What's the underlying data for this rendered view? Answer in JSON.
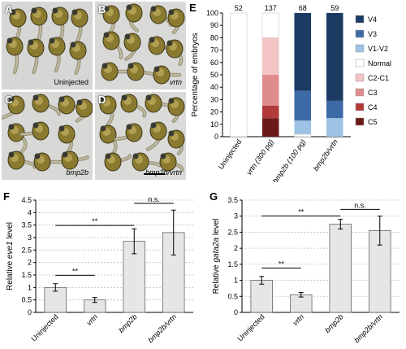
{
  "panels": {
    "A": {
      "label": "A",
      "caption": "Uninjected"
    },
    "B": {
      "label": "B",
      "caption": "vrtn"
    },
    "C": {
      "label": "C",
      "caption": "bmp2b"
    },
    "D": {
      "label": "D",
      "caption": "bmp2b/vrtn"
    },
    "E": {
      "label": "E"
    },
    "F": {
      "label": "F"
    },
    "G": {
      "label": "G"
    }
  },
  "chart_data": [
    {
      "id": "E",
      "type": "bar",
      "stacked": true,
      "ylabel": "Percentage of embryos",
      "ylim": [
        0,
        100
      ],
      "yticks": [
        0,
        10,
        20,
        30,
        40,
        50,
        60,
        70,
        80,
        90,
        100
      ],
      "categories": [
        "Uninjected",
        "vrtn (300 pg)",
        "bmp2b (100 pg)",
        "bmp2b/vrtn"
      ],
      "n": [
        "52",
        "137",
        "68",
        "59"
      ],
      "legend_position": "right",
      "series": [
        {
          "name": "C5",
          "color": "#6b1a1a",
          "values": [
            0,
            15,
            0,
            0
          ]
        },
        {
          "name": "C4",
          "color": "#b23a3a",
          "values": [
            0,
            10,
            0,
            0
          ]
        },
        {
          "name": "C3",
          "color": "#de8c8c",
          "values": [
            0,
            25,
            0,
            0
          ]
        },
        {
          "name": "C2-C1",
          "color": "#f2c4c4",
          "values": [
            0,
            30,
            0,
            0
          ]
        },
        {
          "name": "Normal",
          "color": "#ffffff",
          "values": [
            100,
            20,
            2,
            0
          ]
        },
        {
          "name": "V1-V2",
          "color": "#9cc3e3",
          "values": [
            0,
            0,
            11,
            15
          ]
        },
        {
          "name": "V3",
          "color": "#3c6aa6",
          "values": [
            0,
            0,
            24,
            14
          ]
        },
        {
          "name": "V4",
          "color": "#1c3b63",
          "values": [
            0,
            0,
            63,
            71
          ]
        }
      ],
      "legend": [
        "V4",
        "V3",
        "V1-V2",
        "Normal",
        "C2-C1",
        "C3",
        "C4",
        "C5"
      ]
    },
    {
      "id": "F",
      "type": "bar",
      "ylabel_prefix": "Relative ",
      "ylabel_gene": "eve1",
      "ylabel_suffix": " level",
      "ylim": [
        0,
        4.5
      ],
      "yticks": [
        0,
        0.5,
        1,
        1.5,
        2,
        2.5,
        3,
        3.5,
        4,
        4.5
      ],
      "grid": true,
      "categories": [
        "Uninjected",
        "vrtn",
        "bmp2b",
        "bmp2b/vrtn"
      ],
      "values": [
        1.0,
        0.5,
        2.85,
        3.2
      ],
      "errors": [
        0.15,
        0.1,
        0.5,
        0.9
      ],
      "bar_color": "#e6e6e6",
      "significance": [
        {
          "from": 0,
          "to": 1,
          "label": "**"
        },
        {
          "from": 0,
          "to": 2,
          "label": "**"
        },
        {
          "from": 2,
          "to": 3,
          "label": "n.s."
        }
      ]
    },
    {
      "id": "G",
      "type": "bar",
      "ylabel_prefix": "Relative ",
      "ylabel_gene": "gata2a",
      "ylabel_suffix": " level",
      "ylim": [
        0,
        3.5
      ],
      "yticks": [
        0,
        0.5,
        1,
        1.5,
        2,
        2.5,
        3,
        3.5
      ],
      "grid": true,
      "categories": [
        "Uninjected",
        "vrtn",
        "bmp2b",
        "bmp2b/vrtn"
      ],
      "values": [
        1.0,
        0.55,
        2.75,
        2.55
      ],
      "errors": [
        0.12,
        0.07,
        0.15,
        0.45
      ],
      "bar_color": "#e6e6e6",
      "significance": [
        {
          "from": 0,
          "to": 1,
          "label": "**"
        },
        {
          "from": 0,
          "to": 2,
          "label": "**"
        },
        {
          "from": 2,
          "to": 3,
          "label": "n.s."
        }
      ]
    }
  ]
}
